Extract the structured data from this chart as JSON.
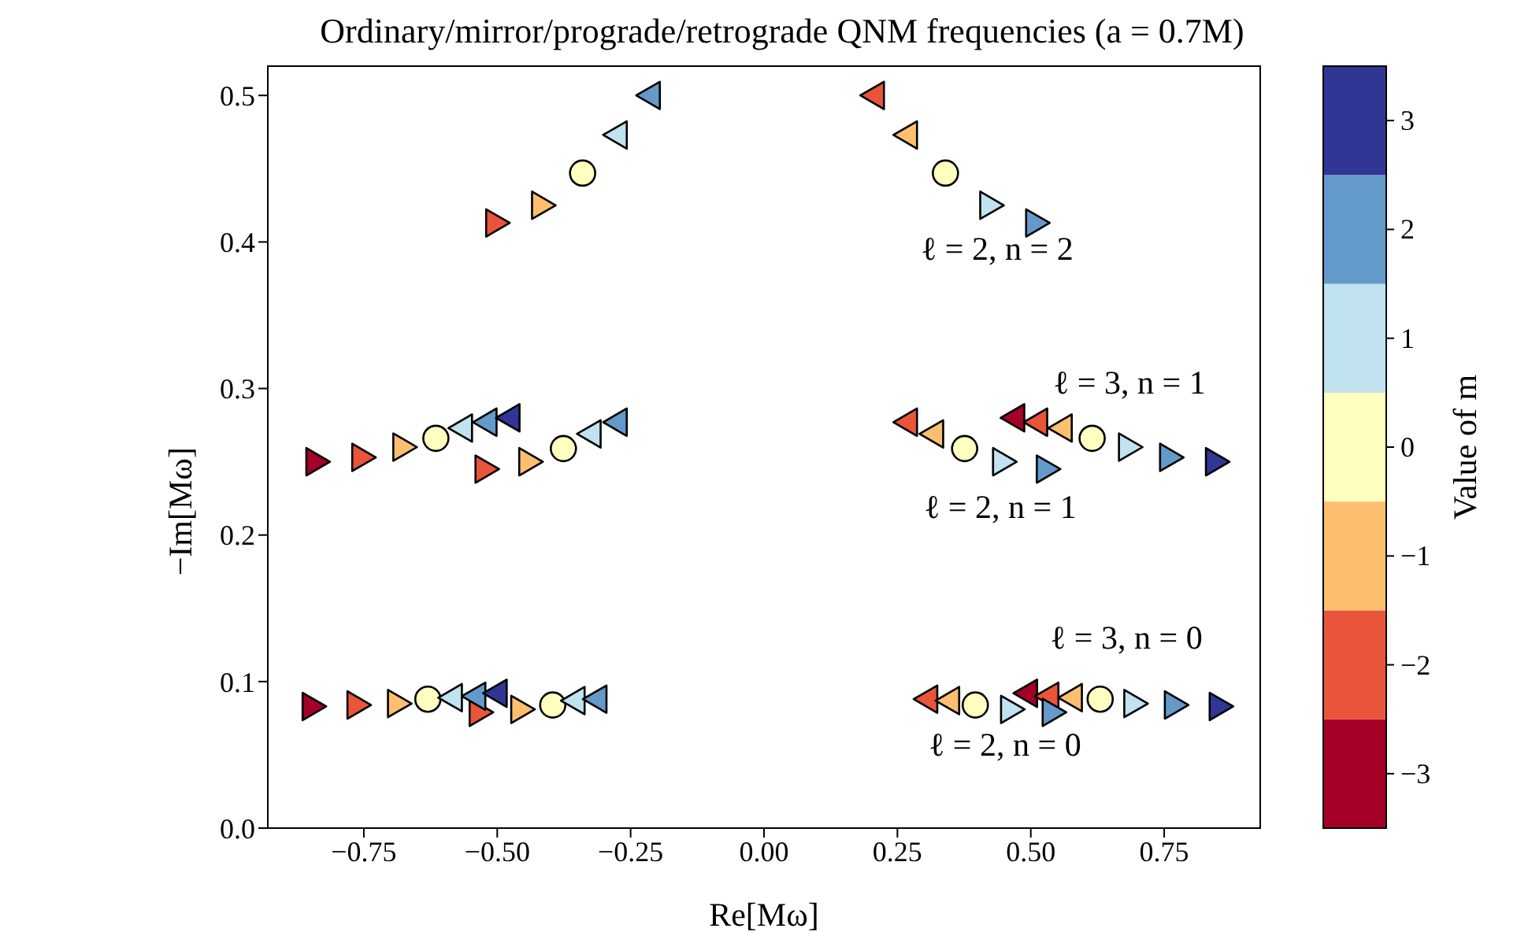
{
  "chart_data": {
    "type": "scatter",
    "title": "Ordinary/mirror/prograde/retrograde QNM frequencies (a = 0.7M)",
    "xlabel": "Re[Mω]",
    "ylabel": "−Im[Mω]",
    "clabel": "Value of m",
    "xlim": [
      -0.93,
      0.93
    ],
    "xticks": [
      {
        "value": -0.75,
        "label": "−0.75"
      },
      {
        "value": -0.5,
        "label": "−0.50"
      },
      {
        "value": -0.25,
        "label": "−0.25"
      },
      {
        "value": 0,
        "label": "0.00"
      },
      {
        "value": 0.25,
        "label": "0.25"
      },
      {
        "value": 0.5,
        "label": "0.50"
      },
      {
        "value": 0.75,
        "label": "0.75"
      }
    ],
    "ylim": [
      0,
      0.52
    ],
    "yticks": [
      {
        "value": 0,
        "label": "0.0"
      },
      {
        "value": 0.1,
        "label": "0.1"
      },
      {
        "value": 0.2,
        "label": "0.2"
      },
      {
        "value": 0.3,
        "label": "0.3"
      },
      {
        "value": 0.4,
        "label": "0.4"
      },
      {
        "value": 0.5,
        "label": "0.5"
      }
    ],
    "clim": [
      -3.5,
      3.5
    ],
    "cticks": [
      {
        "value": -3,
        "label": "−3"
      },
      {
        "value": -2,
        "label": "−2"
      },
      {
        "value": -1,
        "label": "−1"
      },
      {
        "value": 0,
        "label": "0"
      },
      {
        "value": 1,
        "label": "1"
      },
      {
        "value": 2,
        "label": "2"
      },
      {
        "value": 3,
        "label": "3"
      }
    ],
    "colors": [
      "#a50026",
      "#e9553a",
      "#fdbf6f",
      "#ffffbf",
      "#c0e3ef",
      "#649ac9",
      "#313695"
    ],
    "grid": false,
    "series": [
      {
        "type": "scatter",
        "marker": "triangle",
        "color": "#a50026",
        "x": [
          -0.843,
          0.473,
          -0.85,
          0.497
        ],
        "values": [
          0.25,
          0.28,
          0.083,
          0.092
        ]
      },
      {
        "type": "scatter",
        "marker": "triangle",
        "color": "#e9553a",
        "x": [
          -0.506,
          0.21,
          -0.757,
          0.516,
          -0.526,
          0.272,
          -0.766,
          0.537,
          -0.537,
          0.31
        ],
        "values": [
          0.413,
          0.5,
          0.253,
          0.277,
          0.245,
          0.277,
          0.084,
          0.09,
          0.079,
          0.088
        ]
      },
      {
        "type": "scatter",
        "marker": "triangle",
        "color": "#fdbf6f",
        "x": [
          -0.42,
          0.272,
          -0.68,
          0.562,
          -0.444,
          0.321,
          -0.69,
          0.581,
          -0.459,
          0.351
        ],
        "values": [
          0.425,
          0.473,
          0.26,
          0.273,
          0.25,
          0.269,
          0.085,
          0.089,
          0.081,
          0.087
        ]
      },
      {
        "type": "scatter",
        "marker": "circle",
        "color": "#ffffbf",
        "x": [
          -0.34,
          0.34,
          -0.615,
          0.615,
          -0.376,
          0.376,
          -0.63,
          0.63,
          -0.396,
          0.396
        ],
        "values": [
          0.447,
          0.447,
          0.266,
          0.266,
          0.259,
          0.259,
          0.088,
          0.088,
          0.084,
          0.084
        ]
      },
      {
        "type": "scatter",
        "marker": "triangle",
        "color": "#c0e3ef",
        "x": [
          -0.272,
          0.42,
          -0.562,
          0.68,
          -0.321,
          0.444,
          -0.581,
          0.69,
          -0.351,
          0.459
        ],
        "values": [
          0.473,
          0.425,
          0.273,
          0.26,
          0.269,
          0.25,
          0.089,
          0.085,
          0.087,
          0.081
        ]
      },
      {
        "type": "scatter",
        "marker": "triangle",
        "color": "#649ac9",
        "x": [
          -0.21,
          0.506,
          -0.516,
          0.757,
          -0.272,
          0.526,
          -0.537,
          0.766,
          -0.31,
          0.537
        ],
        "values": [
          0.5,
          0.413,
          0.277,
          0.253,
          0.277,
          0.245,
          0.09,
          0.084,
          0.088,
          0.079
        ]
      },
      {
        "type": "scatter",
        "marker": "triangle",
        "color": "#313695",
        "x": [
          -0.473,
          0.843,
          -0.497,
          0.85
        ],
        "values": [
          0.28,
          0.25,
          0.092,
          0.083
        ]
      }
    ],
    "annotations": [
      "ℓ = 2, n = 2",
      "ℓ = 3, n = 1",
      "ℓ = 2, n = 1",
      "ℓ = 3, n = 0",
      "ℓ = 2, n = 0"
    ]
  }
}
